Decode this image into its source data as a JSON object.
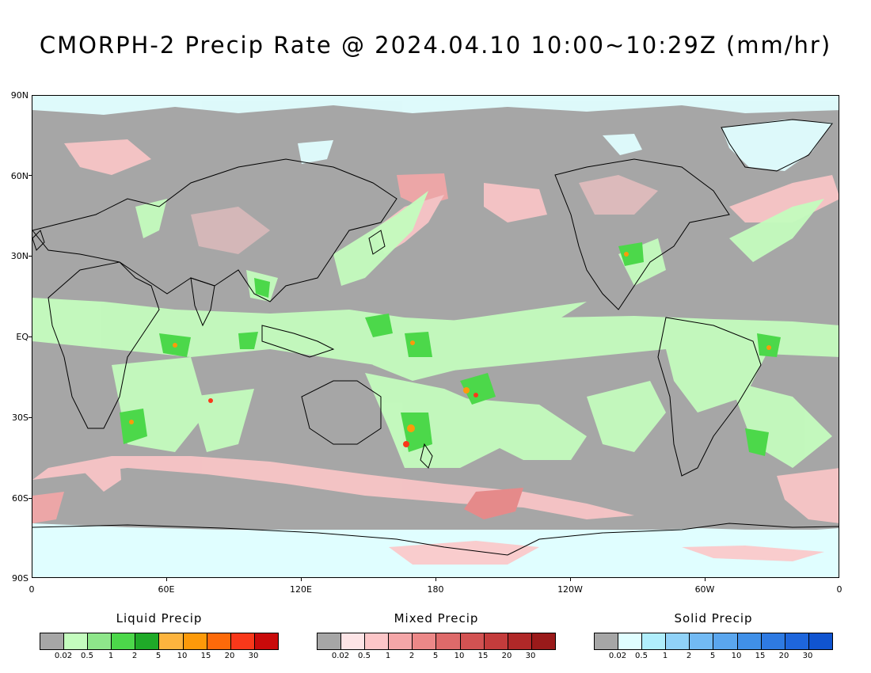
{
  "title": "CMORPH-2 Precip Rate @ 2024.04.10 10:00~10:29Z (mm/hr)",
  "map": {
    "lat_labels": [
      "90N",
      "60N",
      "30N",
      "EQ",
      "30S",
      "60S",
      "90S"
    ],
    "lon_labels": [
      "0",
      "60E",
      "120E",
      "180",
      "120W",
      "60W",
      "0"
    ]
  },
  "legends": [
    {
      "title": "Liquid Precip",
      "colors": [
        "#a6a6a6",
        "#c4fcbe",
        "#8ee68a",
        "#4cd84a",
        "#1faa28",
        "#fdb43e",
        "#fd9a0a",
        "#fd6a0a",
        "#f9381a",
        "#c90a0a"
      ],
      "ticks": [
        "0.02",
        "0.5",
        "1",
        "2",
        "5",
        "10",
        "15",
        "20",
        "30"
      ]
    },
    {
      "title": "Mixed Precip",
      "colors": [
        "#a6a6a6",
        "#fde4e6",
        "#fcc6c8",
        "#f4a6a8",
        "#ec8888",
        "#de6a6a",
        "#d25252",
        "#c43c3c",
        "#b02828",
        "#9a1a1a"
      ],
      "ticks": [
        "0.02",
        "0.5",
        "1",
        "2",
        "5",
        "10",
        "15",
        "20",
        "30"
      ]
    },
    {
      "title": "Solid Precip",
      "colors": [
        "#a6a6a6",
        "#e0feff",
        "#b0eefc",
        "#90d2f8",
        "#72baf4",
        "#5aa6ee",
        "#4090e8",
        "#2e7ae2",
        "#1e66dc",
        "#1054d0"
      ],
      "ticks": [
        "0.02",
        "0.5",
        "1",
        "2",
        "5",
        "10",
        "15",
        "20",
        "30"
      ]
    }
  ]
}
